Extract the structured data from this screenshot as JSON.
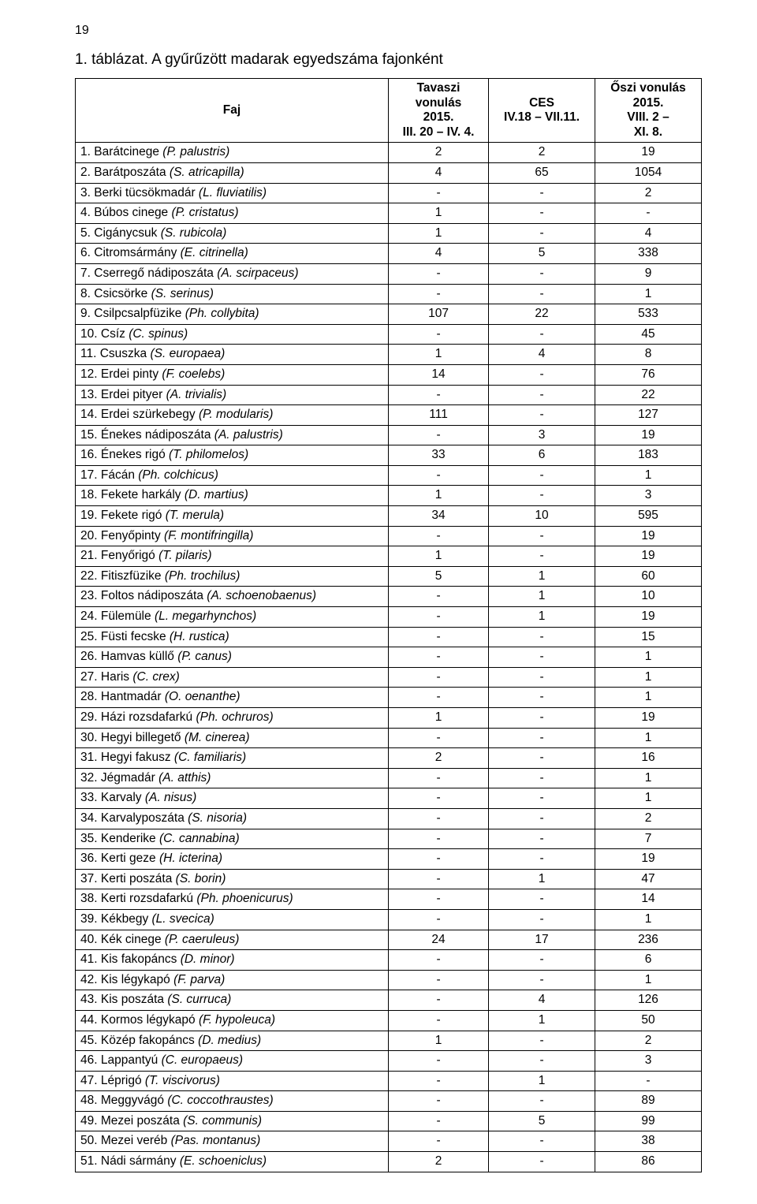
{
  "page_number": "19",
  "title": "1. táblázat. A gyűrűzött madarak egyedszáma fajonként",
  "columns": {
    "faj": "Faj",
    "spring": "Tavaszi\nvonulás\n2015.\nIII. 20 – IV. 4.",
    "ces": "CES\nIV.18 – VII.11.",
    "autumn": "Őszi vonulás\n2015.\nVIII. 2 –\nXI. 8."
  },
  "rows": [
    {
      "n": "1.",
      "name": "Barátcinege",
      "lat": "(P. palustris)",
      "v": [
        "2",
        "2",
        "19"
      ]
    },
    {
      "n": "2.",
      "name": "Barátposzáta",
      "lat": "(S. atricapilla)",
      "v": [
        "4",
        "65",
        "1054"
      ]
    },
    {
      "n": "3.",
      "name": "Berki tücsökmadár",
      "lat": "(L. fluviatilis)",
      "v": [
        "-",
        "-",
        "2"
      ]
    },
    {
      "n": "4.",
      "name": "Búbos cinege",
      "lat": "(P. cristatus)",
      "v": [
        "1",
        "-",
        "-"
      ]
    },
    {
      "n": "5.",
      "name": "Cigánycsuk",
      "lat": "(S. rubicola)",
      "v": [
        "1",
        "-",
        "4"
      ]
    },
    {
      "n": "6.",
      "name": "Citromsármány",
      "lat": "(E. citrinella)",
      "v": [
        "4",
        "5",
        "338"
      ]
    },
    {
      "n": "7.",
      "name": "Cserregő nádiposzáta",
      "lat": "(A. scirpaceus)",
      "v": [
        "-",
        "-",
        "9"
      ]
    },
    {
      "n": "8.",
      "name": "Csicsörke",
      "lat": "(S. serinus)",
      "v": [
        "-",
        "-",
        "1"
      ]
    },
    {
      "n": "9.",
      "name": "Csilpcsalpfüzike",
      "lat": "(Ph. collybita)",
      "v": [
        "107",
        "22",
        "533"
      ]
    },
    {
      "n": "10.",
      "name": "Csíz",
      "lat": "(C. spinus)",
      "v": [
        "-",
        "-",
        "45"
      ]
    },
    {
      "n": "11.",
      "name": "Csuszka",
      "lat": "(S. europaea)",
      "v": [
        "1",
        "4",
        "8"
      ]
    },
    {
      "n": "12.",
      "name": "Erdei pinty",
      "lat": "(F. coelebs)",
      "v": [
        "14",
        "-",
        "76"
      ]
    },
    {
      "n": "13.",
      "name": "Erdei pityer",
      "lat": "(A. trivialis)",
      "v": [
        "-",
        "-",
        "22"
      ]
    },
    {
      "n": "14.",
      "name": "Erdei szürkebegy",
      "lat": "(P. modularis)",
      "v": [
        "111",
        "-",
        "127"
      ]
    },
    {
      "n": "15.",
      "name": "Énekes nádiposzáta",
      "lat": "(A. palustris)",
      "v": [
        "-",
        "3",
        "19"
      ]
    },
    {
      "n": "16.",
      "name": "Énekes rigó",
      "lat": "(T. philomelos)",
      "v": [
        "33",
        "6",
        "183"
      ]
    },
    {
      "n": "17.",
      "name": "Fácán",
      "lat": "(Ph. colchicus)",
      "v": [
        "-",
        "-",
        "1"
      ]
    },
    {
      "n": "18.",
      "name": "Fekete harkály",
      "lat": "(D. martius)",
      "v": [
        "1",
        "-",
        "3"
      ]
    },
    {
      "n": "19.",
      "name": "Fekete rigó",
      "lat": "(T. merula)",
      "v": [
        "34",
        "10",
        "595"
      ]
    },
    {
      "n": "20.",
      "name": "Fenyőpinty",
      "lat": "(F. montifringilla)",
      "v": [
        "-",
        "-",
        "19"
      ]
    },
    {
      "n": "21.",
      "name": "Fenyőrigó",
      "lat": "(T. pilaris)",
      "v": [
        "1",
        "-",
        "19"
      ]
    },
    {
      "n": "22.",
      "name": "Fitiszfüzike",
      "lat": "(Ph. trochilus)",
      "v": [
        "5",
        "1",
        "60"
      ]
    },
    {
      "n": "23.",
      "name": "Foltos nádiposzáta",
      "lat": "(A. schoenobaenus)",
      "v": [
        "-",
        "1",
        "10"
      ]
    },
    {
      "n": "24.",
      "name": "Fülemüle",
      "lat": "(L. megarhynchos)",
      "v": [
        "-",
        "1",
        "19"
      ]
    },
    {
      "n": "25.",
      "name": "Füsti fecske",
      "lat": "(H. rustica)",
      "v": [
        "-",
        "-",
        "15"
      ]
    },
    {
      "n": "26.",
      "name": "Hamvas küllő",
      "lat": "(P. canus)",
      "v": [
        "-",
        "-",
        "1"
      ]
    },
    {
      "n": "27.",
      "name": "Haris",
      "lat": "(C. crex)",
      "v": [
        "-",
        "-",
        "1"
      ]
    },
    {
      "n": "28.",
      "name": "Hantmadár",
      "lat": "(O. oenanthe)",
      "v": [
        "-",
        "-",
        "1"
      ]
    },
    {
      "n": "29.",
      "name": "Házi rozsdafarkú",
      "lat": "(Ph. ochruros)",
      "v": [
        "1",
        "-",
        "19"
      ]
    },
    {
      "n": "30.",
      "name": "Hegyi billegető",
      "lat": "(M. cinerea)",
      "v": [
        "-",
        "-",
        "1"
      ]
    },
    {
      "n": "31.",
      "name": "Hegyi fakusz",
      "lat": "(C. familiaris)",
      "v": [
        "2",
        "-",
        "16"
      ]
    },
    {
      "n": "32.",
      "name": "Jégmadár",
      "lat": "(A. atthis)",
      "v": [
        "-",
        "-",
        "1"
      ]
    },
    {
      "n": "33.",
      "name": "Karvaly",
      "lat": "(A. nisus)",
      "v": [
        "-",
        "-",
        "1"
      ]
    },
    {
      "n": "34.",
      "name": "Karvalyposzáta",
      "lat": "(S. nisoria)",
      "v": [
        "-",
        "-",
        "2"
      ]
    },
    {
      "n": "35.",
      "name": "Kenderike",
      "lat": "(C. cannabina)",
      "v": [
        "-",
        "-",
        "7"
      ]
    },
    {
      "n": "36.",
      "name": "Kerti geze",
      "lat": "(H. icterina)",
      "v": [
        "-",
        "-",
        "19"
      ]
    },
    {
      "n": "37.",
      "name": "Kerti poszáta",
      "lat": "(S. borin)",
      "v": [
        "-",
        "1",
        "47"
      ]
    },
    {
      "n": "38.",
      "name": "Kerti rozsdafarkú",
      "lat": "(Ph. phoenicurus)",
      "v": [
        "-",
        "-",
        "14"
      ]
    },
    {
      "n": "39.",
      "name": "Kékbegy",
      "lat": "(L. svecica)",
      "v": [
        "-",
        "-",
        "1"
      ]
    },
    {
      "n": "40.",
      "name": "Kék cinege",
      "lat": "(P. caeruleus)",
      "v": [
        "24",
        "17",
        "236"
      ]
    },
    {
      "n": "41.",
      "name": "Kis fakopáncs",
      "lat": "(D. minor)",
      "v": [
        "-",
        "-",
        "6"
      ]
    },
    {
      "n": "42.",
      "name": "Kis légykapó",
      "lat": "(F. parva)",
      "v": [
        "-",
        "-",
        "1"
      ]
    },
    {
      "n": "43.",
      "name": "Kis poszáta",
      "lat": "(S. curruca)",
      "v": [
        "-",
        "4",
        "126"
      ]
    },
    {
      "n": "44.",
      "name": "Kormos légykapó",
      "lat": "(F. hypoleuca)",
      "v": [
        "-",
        "1",
        "50"
      ]
    },
    {
      "n": "45.",
      "name": "Közép fakopáncs",
      "lat": "(D. medius)",
      "v": [
        "1",
        "-",
        "2"
      ]
    },
    {
      "n": "46.",
      "name": "Lappantyú",
      "lat": "(C. europaeus)",
      "v": [
        "-",
        "-",
        "3"
      ]
    },
    {
      "n": "47.",
      "name": "Léprigó",
      "lat": "(T. viscivorus)",
      "v": [
        "-",
        "1",
        "-"
      ]
    },
    {
      "n": "48.",
      "name": "Meggyvágó",
      "lat": "(C. coccothraustes)",
      "v": [
        "-",
        "-",
        "89"
      ]
    },
    {
      "n": "49.",
      "name": "Mezei poszáta",
      "lat": "(S. communis)",
      "v": [
        "-",
        "5",
        "99"
      ]
    },
    {
      "n": "50.",
      "name": "Mezei veréb",
      "lat": "(Pas. montanus)",
      "v": [
        "-",
        "-",
        "38"
      ]
    },
    {
      "n": "51.",
      "name": "Nádi sármány",
      "lat": "(E. schoeniclus)",
      "v": [
        "2",
        "-",
        "86"
      ]
    }
  ]
}
